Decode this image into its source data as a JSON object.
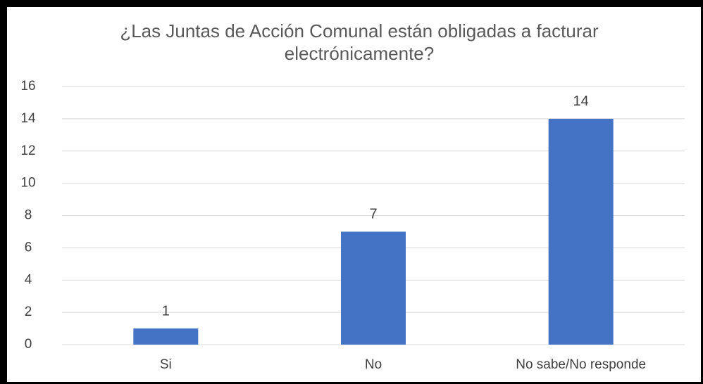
{
  "chart_data": {
    "type": "bar",
    "title": "¿Las Juntas de Acción Comunal están obligadas a facturar electrónicamente?",
    "categories": [
      "Si",
      "No",
      "No sabe/No responde"
    ],
    "values": [
      1,
      7,
      14
    ],
    "color": "#4472c4",
    "ylim": [
      0,
      16
    ],
    "yticks": [
      0,
      2,
      4,
      6,
      8,
      10,
      12,
      14,
      16
    ],
    "grid": true
  }
}
